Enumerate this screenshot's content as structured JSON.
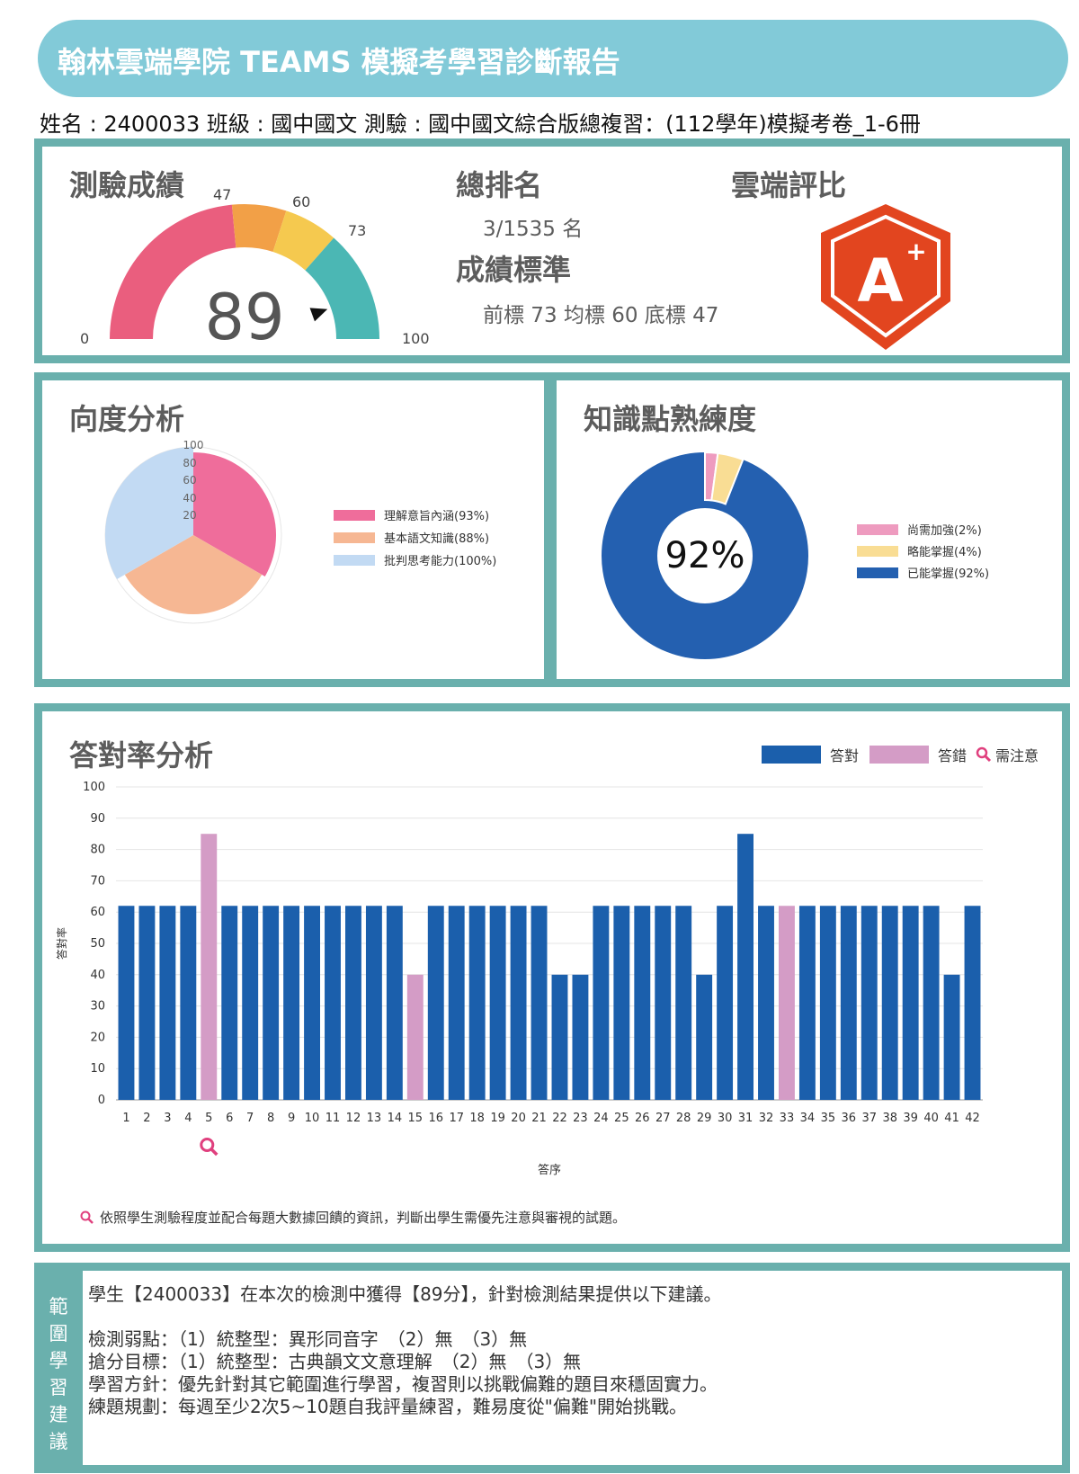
{
  "header": {
    "title": "翰林雲端學院 TEAMS 模擬考學習診斷報告",
    "info": "姓名 : 2400033 班級 : 國中國文  測驗 : 國中國文綜合版總複習：(112學年)模擬考卷_1-6冊"
  },
  "score_panel": {
    "title": "測驗成績",
    "score": "89",
    "gauge_labels": {
      "min": "0",
      "low": "47",
      "mid": "60",
      "high": "73",
      "max": "100"
    },
    "colors": {
      "low": "#ea5e7e",
      "mid": "#f2a047",
      "high": "#f5c94f",
      "top": "#4bb7b4"
    },
    "rank_title": "總排名",
    "rank_value": "3/1535 名",
    "standard_title": "成績標準",
    "standard_value": "前標 73 均標 60 底標 47",
    "cloud_title": "雲端評比",
    "grade_icon": "a-plus-shield-icon",
    "grade_letter": "A"
  },
  "radar_panel": {
    "title": "向度分析",
    "ticks": [
      "100",
      "80",
      "60",
      "40",
      "20"
    ],
    "legend": [
      {
        "label": "理解意旨內涵(93%)",
        "color": "#ef6d9b"
      },
      {
        "label": "基本語文知識(88%)",
        "color": "#f6b793"
      },
      {
        "label": "批判思考能力(100%)",
        "color": "#c2daf3"
      }
    ]
  },
  "knowledge_panel": {
    "title": "知識點熟練度",
    "center_value": "92%",
    "legend": [
      {
        "label": "尚需加強(2%)",
        "color": "#ee9bbf"
      },
      {
        "label": "略能掌握(4%)",
        "color": "#f9dd94"
      },
      {
        "label": "已能掌握(92%)",
        "color": "#2460b0"
      }
    ]
  },
  "bar_panel": {
    "title": "答對率分析",
    "legend_correct": "答對",
    "legend_wrong": "答錯",
    "legend_notice": "需注意",
    "ylabel": "答對率",
    "xlabel": "答序",
    "footnote": "依照學生測驗程度並配合每題大數據回饋的資訊，判斷出學生需優先注意與審視的試題。"
  },
  "chart_data": {
    "type": "bar",
    "xlabel": "答序",
    "ylabel": "答對率",
    "ylim": [
      0,
      100
    ],
    "yticks": [
      0,
      10,
      20,
      30,
      40,
      50,
      60,
      70,
      80,
      90,
      100
    ],
    "categories": [
      "1",
      "2",
      "3",
      "4",
      "5",
      "6",
      "7",
      "8",
      "9",
      "10",
      "11",
      "12",
      "13",
      "14",
      "15",
      "16",
      "17",
      "18",
      "19",
      "20",
      "21",
      "22",
      "23",
      "24",
      "25",
      "26",
      "27",
      "28",
      "29",
      "30",
      "31",
      "32",
      "33",
      "34",
      "35",
      "36",
      "37",
      "38",
      "39",
      "40",
      "41",
      "42"
    ],
    "values": [
      62,
      62,
      62,
      62,
      85,
      62,
      62,
      62,
      62,
      62,
      62,
      62,
      62,
      62,
      40,
      62,
      62,
      62,
      62,
      62,
      62,
      40,
      40,
      62,
      62,
      62,
      62,
      62,
      40,
      62,
      85,
      62,
      62,
      62,
      62,
      62,
      62,
      62,
      62,
      62,
      40,
      62
    ],
    "answer": [
      "correct",
      "correct",
      "correct",
      "correct",
      "wrong",
      "correct",
      "correct",
      "correct",
      "correct",
      "correct",
      "correct",
      "correct",
      "correct",
      "correct",
      "wrong",
      "correct",
      "correct",
      "correct",
      "correct",
      "correct",
      "correct",
      "correct",
      "correct",
      "correct",
      "correct",
      "correct",
      "correct",
      "correct",
      "correct",
      "correct",
      "correct",
      "correct",
      "wrong",
      "correct",
      "correct",
      "correct",
      "correct",
      "correct",
      "correct",
      "correct",
      "correct",
      "correct"
    ],
    "notice": [
      "5"
    ],
    "colors": {
      "correct": "#1b5fac",
      "wrong": "#d49cc6",
      "notice": "#e0407e"
    },
    "grid": true
  },
  "advice": {
    "side_label": [
      "範",
      "圍",
      "學",
      "習",
      "建",
      "議"
    ],
    "lines": [
      "學生【2400033】在本次的檢測中獲得【89分】，針對檢測結果提供以下建議。",
      "檢測弱點：（1）統整型：異形同音字　（2）無　（3）無",
      "搶分目標：（1）統整型：古典韻文文意理解　（2）無　（3）無",
      "學習方針：優先針對其它範圍進行學習，複習則以挑戰偏難的題目來穩固實力。",
      "練題規劃：每週至少2次5~10題自我評量練習，難易度從\"偏難\"開始挑戰。"
    ]
  }
}
